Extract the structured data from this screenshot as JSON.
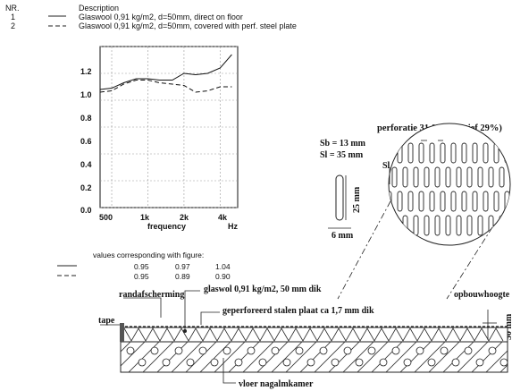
{
  "legend": {
    "col_nr": "NR.",
    "col_description": "Description",
    "rows": [
      {
        "nr": "1",
        "line": "solid",
        "text": "Glaswool 0,91 kg/m2, d=50mm, direct on floor"
      },
      {
        "nr": "2",
        "line": "dashed",
        "text": "Glaswool 0,91 kg/m2, d=50mm, covered with perf. steel plate"
      }
    ]
  },
  "chart_data": {
    "type": "line",
    "x": [
      400,
      500,
      630,
      800,
      1000,
      1250,
      1600,
      2000,
      2500,
      3150,
      4000,
      5000
    ],
    "series": [
      {
        "name": "1",
        "style": "solid",
        "values": [
          0.88,
          0.89,
          0.93,
          0.96,
          0.96,
          0.95,
          0.95,
          1.0,
          0.99,
          1.0,
          1.04,
          1.14
        ]
      },
      {
        "name": "2",
        "style": "dashed",
        "values": [
          0.86,
          0.87,
          0.92,
          0.95,
          0.95,
          0.93,
          0.92,
          0.91,
          0.86,
          0.87,
          0.9,
          0.9
        ]
      }
    ],
    "ylim": [
      0,
      1.2
    ],
    "yticks": [
      "0.0",
      "0.2",
      "0.4",
      "0.6",
      "0.8",
      "1.0",
      "1.2"
    ],
    "xticks": [
      {
        "label": "500",
        "value": 500
      },
      {
        "label": "1k",
        "value": 1000
      },
      {
        "label": "2k",
        "value": 2000
      },
      {
        "label": "4k",
        "value": 4000
      }
    ],
    "xlabel": "frequency",
    "xunit": "Hz",
    "grid": true
  },
  "values_table": {
    "title": "values corresponding with figure:",
    "rows": [
      {
        "line": "solid",
        "values": [
          "0.95",
          "0.97",
          "1.04"
        ]
      },
      {
        "line": "dashed",
        "values": [
          "0.95",
          "0.89",
          "0.90"
        ]
      }
    ]
  },
  "perforation": {
    "title": "perforatie 31 % (effectief 29%)",
    "sb_label": "Sb",
    "sl_label": "Sl",
    "sb_value": "Sb = 13 mm",
    "sl_value": "Sl = 35 mm",
    "slot_length": "25 mm",
    "slot_width": "6 mm"
  },
  "section": {
    "randafscherming": "randafscherming",
    "tape": "tape",
    "glaswol": "glaswol 0,91 kg/m2, 50 mm dik",
    "plaat": "geperforeerd stalen plaat ca 1,7 mm dik",
    "opbouwhoogte": "opbouwhoogte",
    "height": "50 mm",
    "vloer": "vloer nagalmkamer"
  }
}
